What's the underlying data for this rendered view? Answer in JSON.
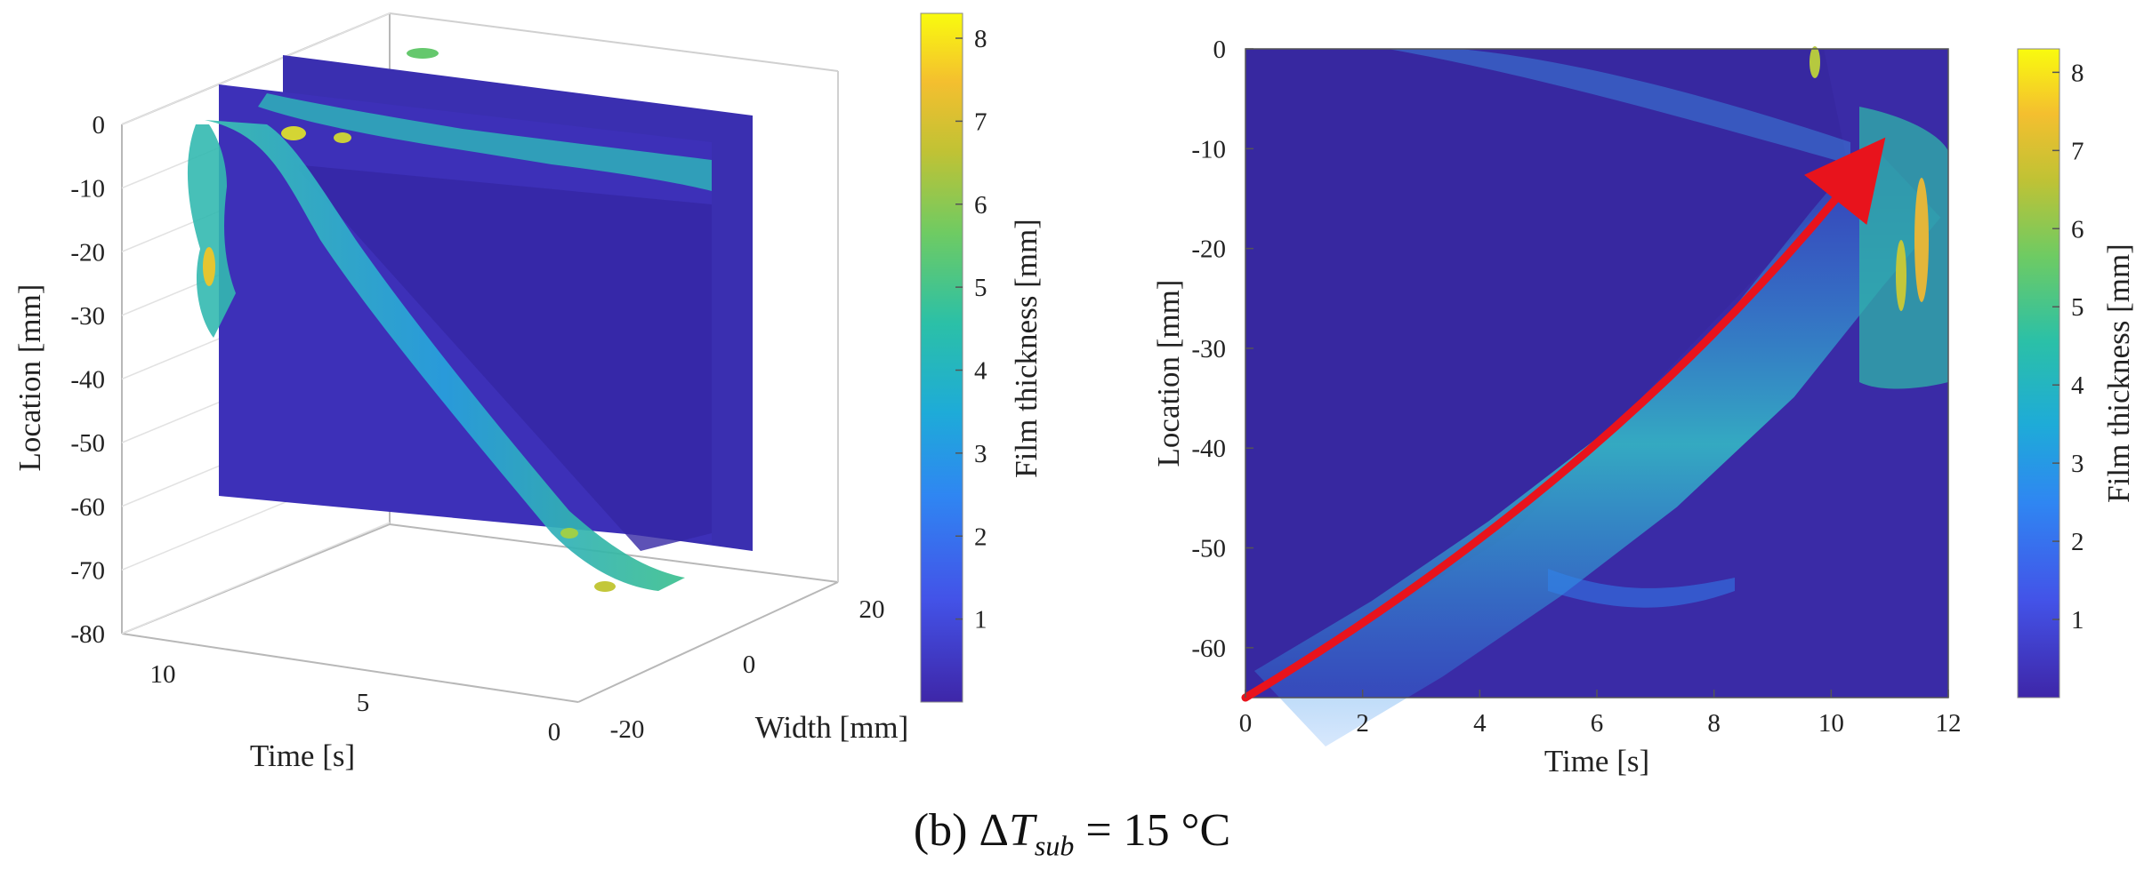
{
  "caption": {
    "panel": "(b)",
    "symbol": "Δ",
    "variable": "T",
    "subscript": "sub",
    "rest": " = 15 °C"
  },
  "colors": {
    "background_min": "#3b2ea8",
    "mid": "#29a7d8",
    "green": "#3fc38a",
    "max": "#f9fb0e",
    "arrow": "#e8131c"
  },
  "chart_data": [
    {
      "type": "scatter3d",
      "title": "",
      "xlabel": "Time [s]",
      "ylabel": "Width [mm]",
      "zlabel": "Location [mm]",
      "x_ticks": [
        "10",
        "5",
        "0"
      ],
      "y_ticks": [
        "20",
        "0",
        "-20"
      ],
      "z_ticks": [
        "0",
        "-10",
        "-20",
        "-30",
        "-40",
        "-50",
        "-60",
        "-70",
        "-80"
      ],
      "xlim": [
        0,
        12
      ],
      "ylim": [
        -20,
        20
      ],
      "zlim": [
        -80,
        0
      ],
      "colorbar": {
        "label": "Film thickness [mm]",
        "ticks": [
          "8",
          "7",
          "6",
          "5",
          "4",
          "3",
          "2",
          "1"
        ],
        "range": [
          0,
          8.3
        ]
      }
    },
    {
      "type": "heatmap",
      "title": "",
      "xlabel": "Time [s]",
      "ylabel": "Location [mm]",
      "x_ticks": [
        "0",
        "2",
        "4",
        "6",
        "8",
        "10",
        "12"
      ],
      "y_ticks": [
        "0",
        "-10",
        "-20",
        "-30",
        "-40",
        "-50",
        "-60"
      ],
      "xlim": [
        0,
        12
      ],
      "ylim": [
        -65,
        0
      ],
      "front_band": [
        {
          "t": 0.0,
          "loc": -65
        },
        {
          "t": 2.0,
          "loc": -58
        },
        {
          "t": 4.0,
          "loc": -50
        },
        {
          "t": 6.0,
          "loc": -41
        },
        {
          "t": 8.0,
          "loc": -30
        },
        {
          "t": 9.5,
          "loc": -19
        },
        {
          "t": 10.5,
          "loc": -12
        }
      ],
      "arrow": {
        "from": {
          "t": 0.0,
          "loc": -65
        },
        "to": {
          "t": 10.5,
          "loc": -12
        }
      },
      "colorbar": {
        "label": "Film thickness [mm]",
        "ticks": [
          "8",
          "7",
          "6",
          "5",
          "4",
          "3",
          "2",
          "1"
        ],
        "range": [
          0,
          8.3
        ]
      }
    }
  ]
}
